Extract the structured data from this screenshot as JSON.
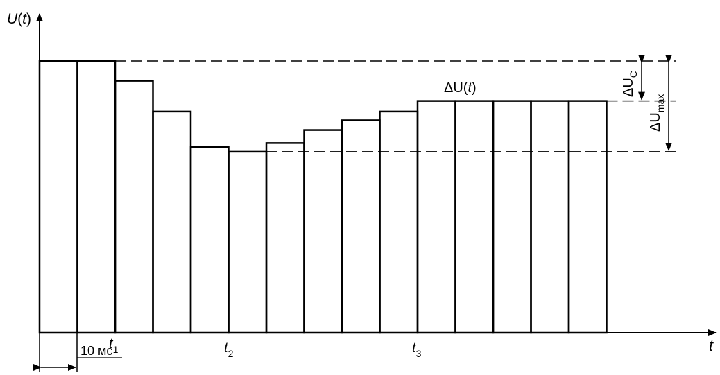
{
  "labels": {
    "y_axis": "U(t)",
    "y_axis_var": "U",
    "y_axis_arg": "t",
    "x_axis": "t",
    "t1_main": "t",
    "t1_sub": "1",
    "t2_main": "t",
    "t2_sub": "2",
    "t3_main": "t",
    "t3_sub": "3",
    "interval": "10 мс",
    "delta_u_t_prefix": "ΔU(",
    "delta_u_t_var": "t",
    "delta_u_t_suffix": ")",
    "delta_uc_main": "ΔU",
    "delta_uc_sub": "C",
    "delta_umax_main": "ΔU",
    "delta_umax_sub": "max"
  },
  "bar_levels": [
    1.0,
    1.0,
    0.927,
    0.814,
    0.684,
    0.666,
    0.698,
    0.746,
    0.782,
    0.814,
    0.853,
    0.853,
    0.853,
    0.853,
    0.853
  ],
  "reference_levels": {
    "initial": 1.0,
    "steady": 0.853,
    "minimum": 0.666
  }
}
